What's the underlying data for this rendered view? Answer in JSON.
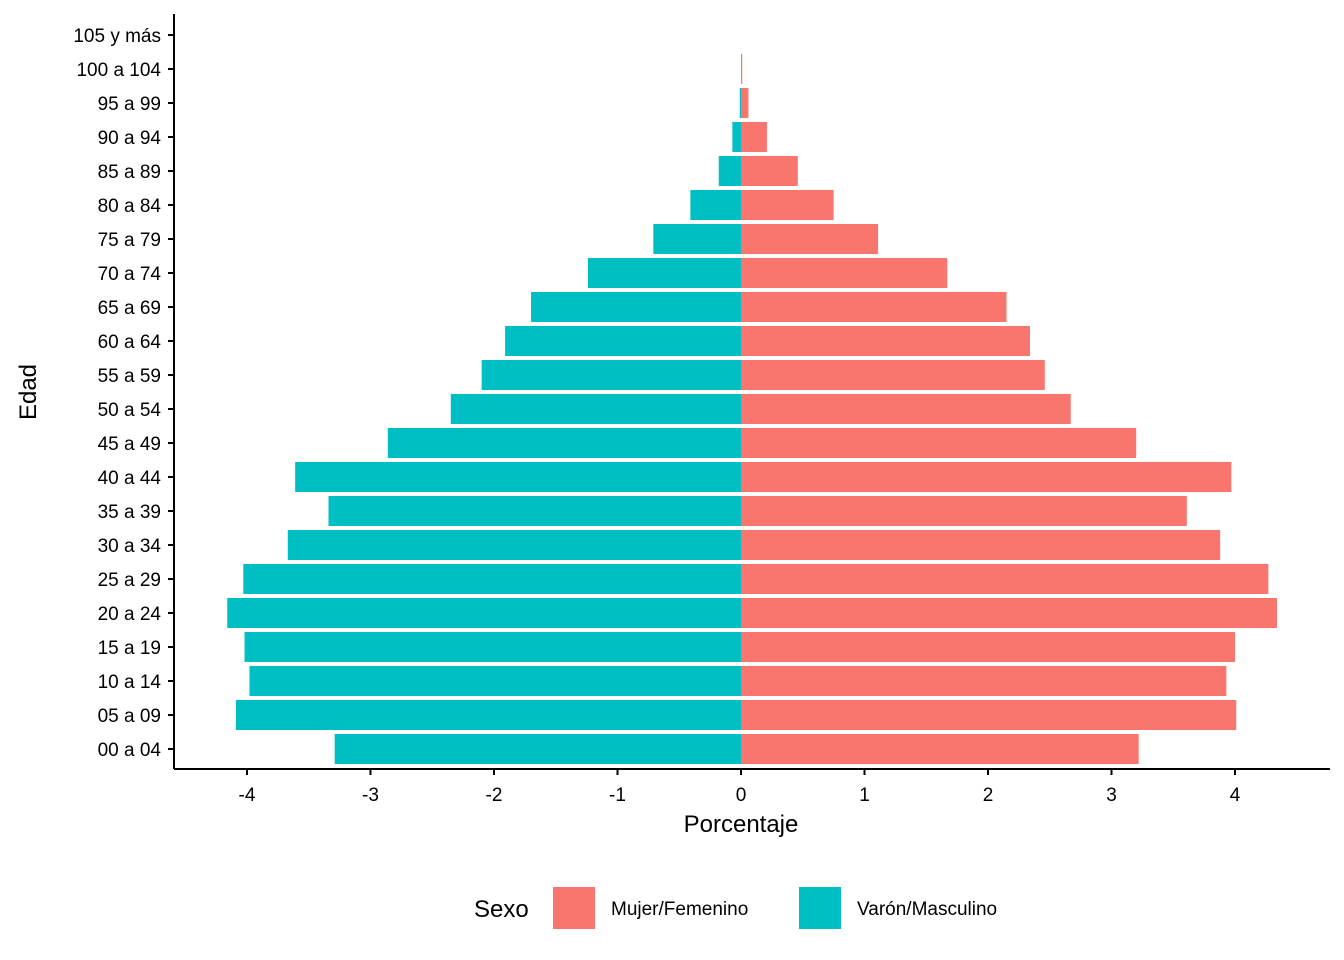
{
  "chart_data": {
    "type": "bar",
    "orientation": "horizontal",
    "subtype": "population-pyramid",
    "title": "",
    "xlabel": "Porcentaje",
    "ylabel": "Edad",
    "xlim": [
      -4.6,
      4.7
    ],
    "x_ticks": [
      -4,
      -3,
      -2,
      -1,
      0,
      1,
      2,
      3,
      4
    ],
    "grid": false,
    "legend_position": "bottom",
    "categories": [
      "00 a 04",
      "05 a 09",
      "10 a 14",
      "15 a 19",
      "20 a 24",
      "25 a 29",
      "30 a 34",
      "35 a 39",
      "40 a 44",
      "45 a 49",
      "50 a 54",
      "55 a 59",
      "60 a 64",
      "65 a 69",
      "70 a 74",
      "75 a 79",
      "80 a 84",
      "85 a 89",
      "90 a 94",
      "95 a 99",
      "100 a 104",
      "105 y más"
    ],
    "series": [
      {
        "name": "Mujer/Femenino",
        "color": "#F8766D",
        "values": [
          3.22,
          4.01,
          3.93,
          4.0,
          4.34,
          4.27,
          3.88,
          3.61,
          3.97,
          3.2,
          2.67,
          2.46,
          2.34,
          2.15,
          1.67,
          1.11,
          0.75,
          0.46,
          0.21,
          0.06,
          0.01,
          0.0
        ]
      },
      {
        "name": "Varón/Masculino",
        "color": "#00BFC4",
        "values": [
          -3.29,
          -4.09,
          -3.98,
          -4.02,
          -4.16,
          -4.03,
          -3.67,
          -3.34,
          -3.61,
          -2.86,
          -2.35,
          -2.1,
          -1.91,
          -1.7,
          -1.24,
          -0.71,
          -0.41,
          -0.18,
          -0.07,
          -0.01,
          0.0,
          0.0
        ]
      }
    ]
  },
  "legend": {
    "title": "Sexo",
    "items": [
      {
        "label": "Mujer/Femenino",
        "color": "#F8766D"
      },
      {
        "label": "Varón/Masculino",
        "color": "#00BFC4"
      }
    ]
  }
}
